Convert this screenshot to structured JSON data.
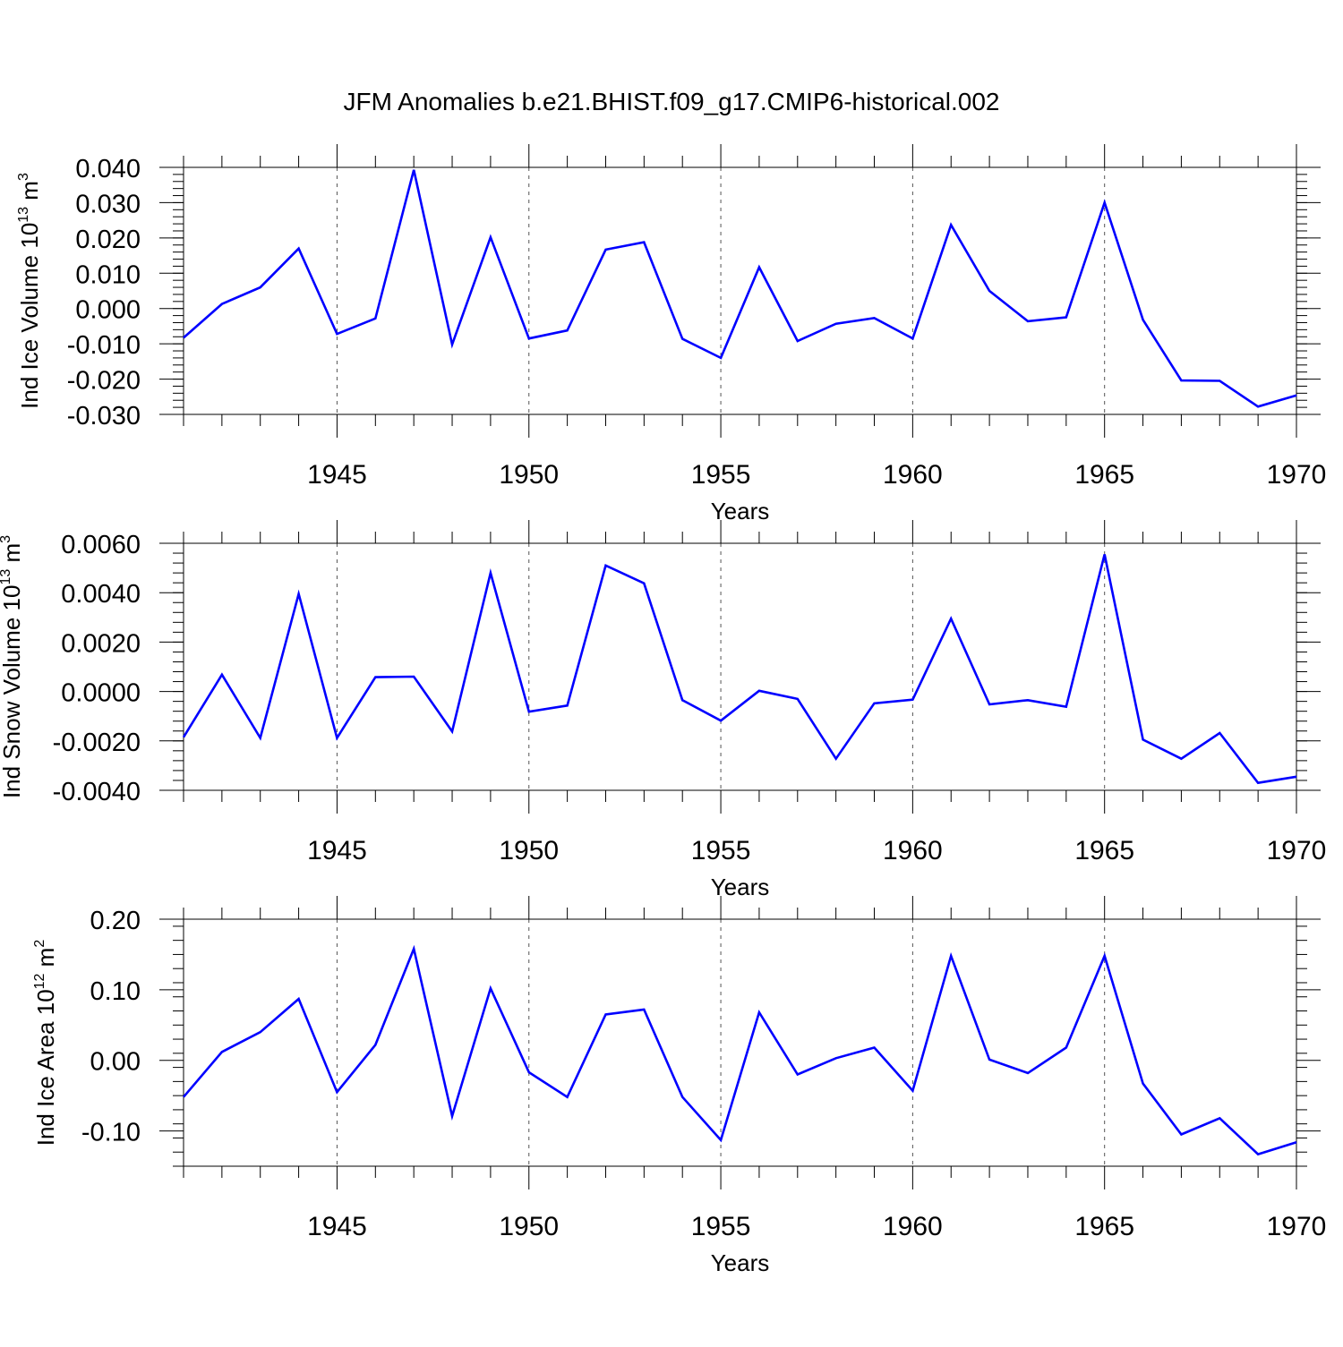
{
  "figure": {
    "title": "JFM Anomalies b.e21.BHIST.f09_g17.CMIP6-historical.002"
  },
  "chart_data": [
    {
      "type": "line",
      "ylabel": "Ind Ice Volume 10",
      "ylabel_exp": "13",
      "ylabel_unit": " m",
      "ylabel_unit_exp": "3",
      "xlabel": "Years",
      "xlim": [
        1941,
        1970
      ],
      "ylim": [
        -0.03,
        0.04
      ],
      "yticks": [
        -0.03,
        -0.02,
        -0.01,
        0.0,
        0.01,
        0.02,
        0.03,
        0.04
      ],
      "yticklabels": [
        "-0.030",
        "-0.020",
        "-0.010",
        "0.000",
        "0.010",
        "0.020",
        "0.030",
        "0.040"
      ],
      "xticks": [
        1945,
        1950,
        1955,
        1960,
        1965,
        1970
      ],
      "xticklabels": [
        "1945",
        "1950",
        "1955",
        "1960",
        "1965",
        "1970"
      ],
      "line_color": "#0000ff",
      "grid": "dashed vertical at major x ticks",
      "x": [
        1941,
        1942,
        1943,
        1944,
        1945,
        1946,
        1947,
        1948,
        1949,
        1950,
        1951,
        1952,
        1953,
        1954,
        1955,
        1956,
        1957,
        1958,
        1959,
        1960,
        1961,
        1962,
        1963,
        1964,
        1965,
        1966,
        1967,
        1968,
        1969,
        1970
      ],
      "values": [
        -0.0083,
        0.0013,
        0.006,
        0.017,
        -0.0072,
        -0.0028,
        0.0393,
        -0.0102,
        0.0202,
        -0.0085,
        -0.0062,
        0.0167,
        0.0188,
        -0.0086,
        -0.014,
        0.0117,
        -0.0092,
        -0.0043,
        -0.0027,
        -0.0085,
        0.0237,
        0.005,
        -0.0036,
        -0.0025,
        0.03,
        -0.0032,
        -0.0204,
        -0.0205,
        -0.0278,
        -0.0246
      ]
    },
    {
      "type": "line",
      "ylabel": "Ind Snow Volume 10",
      "ylabel_exp": "13",
      "ylabel_unit": " m",
      "ylabel_unit_exp": "3",
      "xlabel": "Years",
      "xlim": [
        1941,
        1970
      ],
      "ylim": [
        -0.004,
        0.006
      ],
      "yticks": [
        -0.004,
        -0.002,
        0.0,
        0.002,
        0.004,
        0.006
      ],
      "yticklabels": [
        "-0.0040",
        "-0.0020",
        "0.0000",
        "0.0020",
        "0.0040",
        "0.0060"
      ],
      "xticks": [
        1945,
        1950,
        1955,
        1960,
        1965,
        1970
      ],
      "xticklabels": [
        "1945",
        "1950",
        "1955",
        "1960",
        "1965",
        "1970"
      ],
      "line_color": "#0000ff",
      "grid": "dashed vertical at major x ticks",
      "x": [
        1941,
        1942,
        1943,
        1944,
        1945,
        1946,
        1947,
        1948,
        1949,
        1950,
        1951,
        1952,
        1953,
        1954,
        1955,
        1956,
        1957,
        1958,
        1959,
        1960,
        1961,
        1962,
        1963,
        1964,
        1965,
        1966,
        1967,
        1968,
        1969,
        1970
      ],
      "values": [
        -0.00185,
        0.00068,
        -0.00188,
        0.00395,
        -0.00188,
        0.00058,
        0.0006,
        -0.00162,
        0.0048,
        -0.00082,
        -0.00057,
        0.0051,
        0.00438,
        -0.00035,
        -0.00118,
        3e-05,
        -0.0003,
        -0.00272,
        -0.00048,
        -0.00033,
        0.00295,
        -0.00052,
        -0.00035,
        -0.00062,
        0.00555,
        -0.00195,
        -0.00272,
        -0.00168,
        -0.0037,
        -0.00345
      ]
    },
    {
      "type": "line",
      "ylabel": "Ind Ice Area 10",
      "ylabel_exp": "12",
      "ylabel_unit": " m",
      "ylabel_unit_exp": "2",
      "xlabel": "Years",
      "xlim": [
        1941,
        1970
      ],
      "ylim": [
        -0.15,
        0.2
      ],
      "yticks": [
        -0.1,
        0.0,
        0.1,
        0.2
      ],
      "yticklabels": [
        "-0.10",
        "0.00",
        "0.10",
        "0.20"
      ],
      "xticks": [
        1945,
        1950,
        1955,
        1960,
        1965,
        1970
      ],
      "xticklabels": [
        "1945",
        "1950",
        "1955",
        "1960",
        "1965",
        "1970"
      ],
      "line_color": "#0000ff",
      "grid": "dashed vertical at major x ticks",
      "x": [
        1941,
        1942,
        1943,
        1944,
        1945,
        1946,
        1947,
        1948,
        1949,
        1950,
        1951,
        1952,
        1953,
        1954,
        1955,
        1956,
        1957,
        1958,
        1959,
        1960,
        1961,
        1962,
        1963,
        1964,
        1965,
        1966,
        1967,
        1968,
        1969,
        1970
      ],
      "values": [
        -0.052,
        0.012,
        0.04,
        0.087,
        -0.045,
        0.022,
        0.158,
        -0.079,
        0.102,
        -0.017,
        -0.052,
        0.065,
        0.072,
        -0.052,
        -0.113,
        0.068,
        -0.02,
        0.003,
        0.018,
        -0.043,
        0.148,
        0.001,
        -0.018,
        0.018,
        0.148,
        -0.033,
        -0.105,
        -0.082,
        -0.133,
        -0.116
      ]
    }
  ]
}
